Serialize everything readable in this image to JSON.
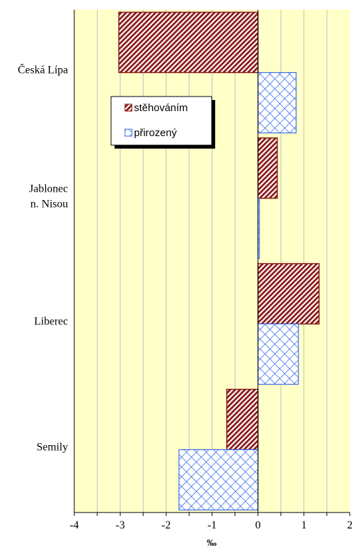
{
  "chart_data": {
    "type": "bar",
    "orientation": "horizontal",
    "categories": [
      "Česká Lípa",
      "Jablonec n. Nisou",
      "Liberec",
      "Semily"
    ],
    "category_labels": [
      [
        "Česká Lípa"
      ],
      [
        "Jablonec",
        "n. Nisou"
      ],
      [
        "Liberec"
      ],
      [
        "Semily"
      ]
    ],
    "series": [
      {
        "name": "stěhováním",
        "values": [
          -3.03,
          0.42,
          1.33,
          -0.68
        ],
        "color": "#8b1a1a",
        "pattern": "diagonal-stripes"
      },
      {
        "name": "přirozený",
        "values": [
          0.83,
          0.03,
          0.88,
          -1.72
        ],
        "color": "#3b6ee8",
        "pattern": "crosshatch"
      }
    ],
    "xlabel": "‰",
    "xlim": [
      -4,
      2
    ],
    "x_ticks": [
      "-4",
      "-3",
      "-2",
      "-1",
      "0",
      "1",
      "2"
    ],
    "grid": true,
    "legend_position": "upper-left",
    "plot_background": "#ffffc8",
    "grid_color": "#c0c0c0"
  }
}
